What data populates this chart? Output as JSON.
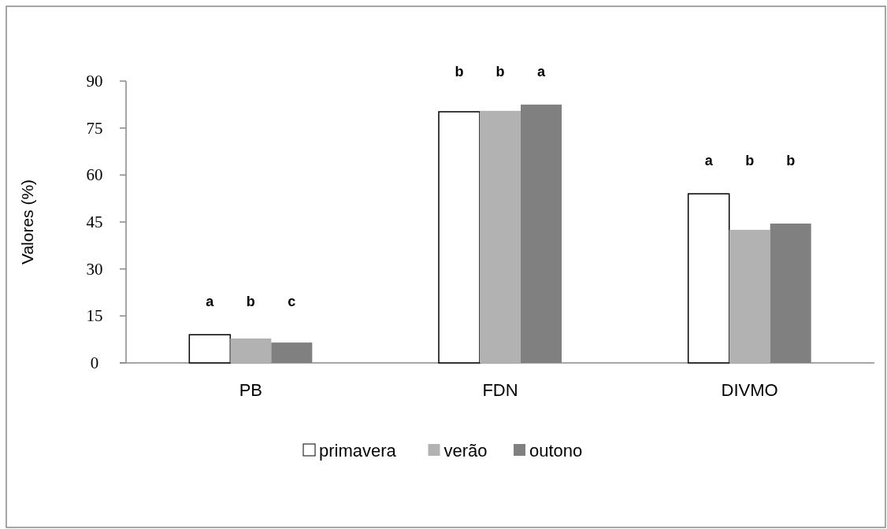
{
  "chart_data": {
    "type": "bar",
    "ylabel": "Valores (%)",
    "categories": [
      "PB",
      "FDN",
      "DIVMO"
    ],
    "series": [
      {
        "name": "primavera",
        "color": "#ffffff",
        "values": [
          9.0,
          80.2,
          54.0
        ]
      },
      {
        "name": "verão",
        "color": "#b2b2b2",
        "values": [
          7.8,
          80.5,
          42.5
        ]
      },
      {
        "name": "outono",
        "color": "#808080",
        "values": [
          6.5,
          82.5,
          44.5
        ]
      }
    ],
    "ylim": [
      0,
      90
    ],
    "yticks": [
      0,
      15,
      30,
      45,
      60,
      75,
      90
    ],
    "grid": false,
    "legend": "bottom",
    "annotations": [
      "a",
      "b",
      "c",
      "b",
      "b",
      "a",
      "a",
      "b",
      "b"
    ]
  }
}
